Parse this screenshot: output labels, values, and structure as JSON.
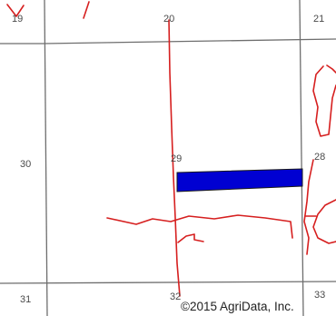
{
  "map": {
    "sections": {
      "s19": "19",
      "s20": "20",
      "s21": "21",
      "s30": "30",
      "s29": "29",
      "s28": "28",
      "s31": "31",
      "s32": "32",
      "s33": "33"
    },
    "copyright": "©2015 AgriData, Inc.",
    "colors": {
      "field": "#0000d2",
      "streams": "#d61f1f",
      "section_lines": "#6e6e6e"
    }
  }
}
